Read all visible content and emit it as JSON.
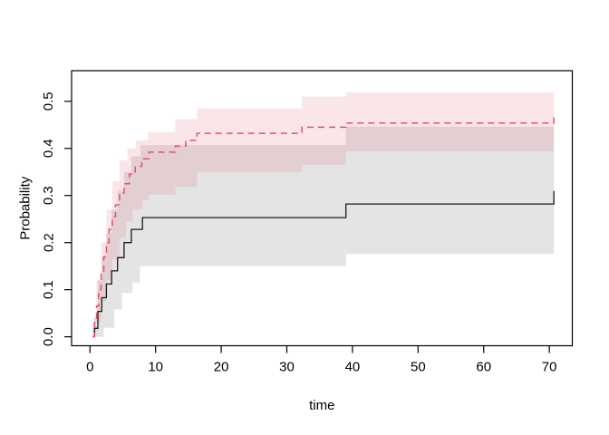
{
  "chart_data": {
    "type": "line",
    "subtype": "step-cumulative-incidence",
    "title": "",
    "xlabel": "time",
    "ylabel": "Probability",
    "xticks": [
      0,
      10,
      20,
      30,
      40,
      50,
      60,
      70
    ],
    "xtick_labels": [
      "0",
      "10",
      "20",
      "30",
      "40",
      "50",
      "60",
      "70"
    ],
    "yticks": [
      0.0,
      0.1,
      0.2,
      0.3,
      0.4,
      0.5
    ],
    "ytick_labels": [
      "0.0",
      "0.1",
      "0.2",
      "0.3",
      "0.4",
      "0.5"
    ],
    "xlim": [
      -2.8,
      73.5
    ],
    "ylim": [
      -0.019,
      0.565
    ],
    "t_end": 70.7,
    "grid": false,
    "legend": "none",
    "frame_color": "#000000",
    "series": [
      {
        "name": "cif-solid-black",
        "line_style": "solid",
        "color": "#1a1a1a",
        "steps": [
          [
            0.5,
            0
          ],
          [
            0.7,
            0.018
          ],
          [
            1.2,
            0.054
          ],
          [
            1.8,
            0.083
          ],
          [
            2.5,
            0.112
          ],
          [
            3.3,
            0.14
          ],
          [
            4.2,
            0.168
          ],
          [
            5.2,
            0.2
          ],
          [
            6.3,
            0.228
          ],
          [
            8,
            0.253
          ],
          [
            39,
            0.282
          ],
          [
            70.7,
            0.31
          ]
        ]
      },
      {
        "name": "cif-dashed-red",
        "line_style": "dashed",
        "color": "#DF536B",
        "steps": [
          [
            0.4,
            0
          ],
          [
            0.7,
            0.03
          ],
          [
            1.0,
            0.065
          ],
          [
            1.3,
            0.1
          ],
          [
            1.7,
            0.135
          ],
          [
            2.1,
            0.17
          ],
          [
            2.5,
            0.2
          ],
          [
            2.9,
            0.228
          ],
          [
            3.4,
            0.255
          ],
          [
            3.9,
            0.28
          ],
          [
            4.5,
            0.305
          ],
          [
            5.2,
            0.325
          ],
          [
            6.0,
            0.345
          ],
          [
            6.9,
            0.362
          ],
          [
            7.9,
            0.378
          ],
          [
            9.0,
            0.392
          ],
          [
            13,
            0.405
          ],
          [
            14.6,
            0.417
          ],
          [
            16.3,
            0.432
          ],
          [
            32.3,
            0.445
          ],
          [
            39,
            0.454
          ],
          [
            70.7,
            0.466
          ]
        ]
      }
    ],
    "bands": [
      {
        "name": "ci-band-black",
        "color": "#000000",
        "opacity": 0.105,
        "upper": [
          [
            0.5,
            0.04
          ],
          [
            1.2,
            0.12
          ],
          [
            1.8,
            0.17
          ],
          [
            2.5,
            0.22
          ],
          [
            3.3,
            0.27
          ],
          [
            4.2,
            0.31
          ],
          [
            5.2,
            0.35
          ],
          [
            6.3,
            0.383
          ],
          [
            7.7,
            0.407
          ],
          [
            39,
            0.446
          ]
        ],
        "lower": [
          [
            0.5,
            0
          ],
          [
            2.1,
            0.019
          ],
          [
            3.7,
            0.058
          ],
          [
            4.9,
            0.093
          ],
          [
            6.5,
            0.115
          ],
          [
            7.6,
            0.15
          ],
          [
            39,
            0.176
          ]
        ]
      },
      {
        "name": "ci-band-red",
        "color": "#DF536B",
        "opacity": 0.15,
        "upper": [
          [
            0.4,
            0.02
          ],
          [
            1.0,
            0.12
          ],
          [
            1.7,
            0.2
          ],
          [
            2.5,
            0.27
          ],
          [
            3.4,
            0.33
          ],
          [
            4.5,
            0.375
          ],
          [
            5.7,
            0.4
          ],
          [
            7.0,
            0.417
          ],
          [
            8.8,
            0.435
          ],
          [
            13,
            0.462
          ],
          [
            16.3,
            0.485
          ],
          [
            32.3,
            0.51
          ],
          [
            39,
            0.519
          ]
        ],
        "lower": [
          [
            0.4,
            0
          ],
          [
            1.0,
            0.03
          ],
          [
            1.7,
            0.075
          ],
          [
            2.5,
            0.12
          ],
          [
            3.4,
            0.165
          ],
          [
            4.5,
            0.21
          ],
          [
            5.5,
            0.245
          ],
          [
            6.5,
            0.27
          ],
          [
            8,
            0.29
          ],
          [
            9,
            0.302
          ],
          [
            13,
            0.318
          ],
          [
            16.3,
            0.35
          ],
          [
            32.3,
            0.365
          ],
          [
            39,
            0.394
          ]
        ]
      }
    ]
  }
}
